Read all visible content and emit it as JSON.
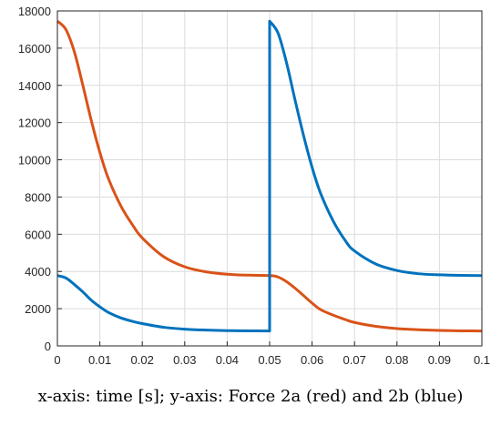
{
  "caption": "x-axis: time [s]; y-axis: Force 2a (red) and 2b (blue)",
  "chart_data": {
    "type": "line",
    "title": "",
    "xlabel": "",
    "ylabel": "",
    "xlim": [
      0,
      0.1
    ],
    "ylim": [
      0,
      18000
    ],
    "grid": true,
    "x_ticks": [
      "0",
      "0.01",
      "0.02",
      "0.03",
      "0.04",
      "0.05",
      "0.06",
      "0.07",
      "0.08",
      "0.09",
      "0.1"
    ],
    "y_ticks": [
      "0",
      "2000",
      "4000",
      "6000",
      "8000",
      "10000",
      "12000",
      "14000",
      "16000",
      "18000"
    ],
    "series": [
      {
        "color": "#d95319",
        "x": [
          0,
          0.002,
          0.004,
          0.006,
          0.008,
          0.01,
          0.012,
          0.015,
          0.018,
          0.02,
          0.025,
          0.03,
          0.035,
          0.04,
          0.045,
          0.05,
          0.052,
          0.054,
          0.056,
          0.058,
          0.06,
          0.062,
          0.065,
          0.068,
          0.07,
          0.075,
          0.08,
          0.085,
          0.09,
          0.095,
          0.1
        ],
        "y": [
          17450,
          17000,
          15800,
          14000,
          12100,
          10400,
          9000,
          7500,
          6400,
          5800,
          4800,
          4250,
          3980,
          3850,
          3800,
          3780,
          3700,
          3450,
          3100,
          2700,
          2300,
          1950,
          1650,
          1400,
          1260,
          1050,
          930,
          870,
          830,
          810,
          800
        ]
      },
      {
        "color": "#0072bd",
        "x": [
          0,
          0.002,
          0.004,
          0.006,
          0.008,
          0.01,
          0.012,
          0.015,
          0.018,
          0.02,
          0.025,
          0.03,
          0.035,
          0.04,
          0.045,
          0.05,
          0.05,
          0.052,
          0.054,
          0.056,
          0.058,
          0.06,
          0.062,
          0.065,
          0.068,
          0.07,
          0.075,
          0.08,
          0.085,
          0.09,
          0.095,
          0.1
        ],
        "y": [
          3780,
          3650,
          3300,
          2900,
          2450,
          2100,
          1800,
          1500,
          1300,
          1200,
          1000,
          900,
          850,
          820,
          810,
          800,
          17450,
          16800,
          15200,
          13200,
          11300,
          9600,
          8200,
          6700,
          5600,
          5100,
          4400,
          4050,
          3880,
          3820,
          3790,
          3780
        ]
      }
    ]
  }
}
